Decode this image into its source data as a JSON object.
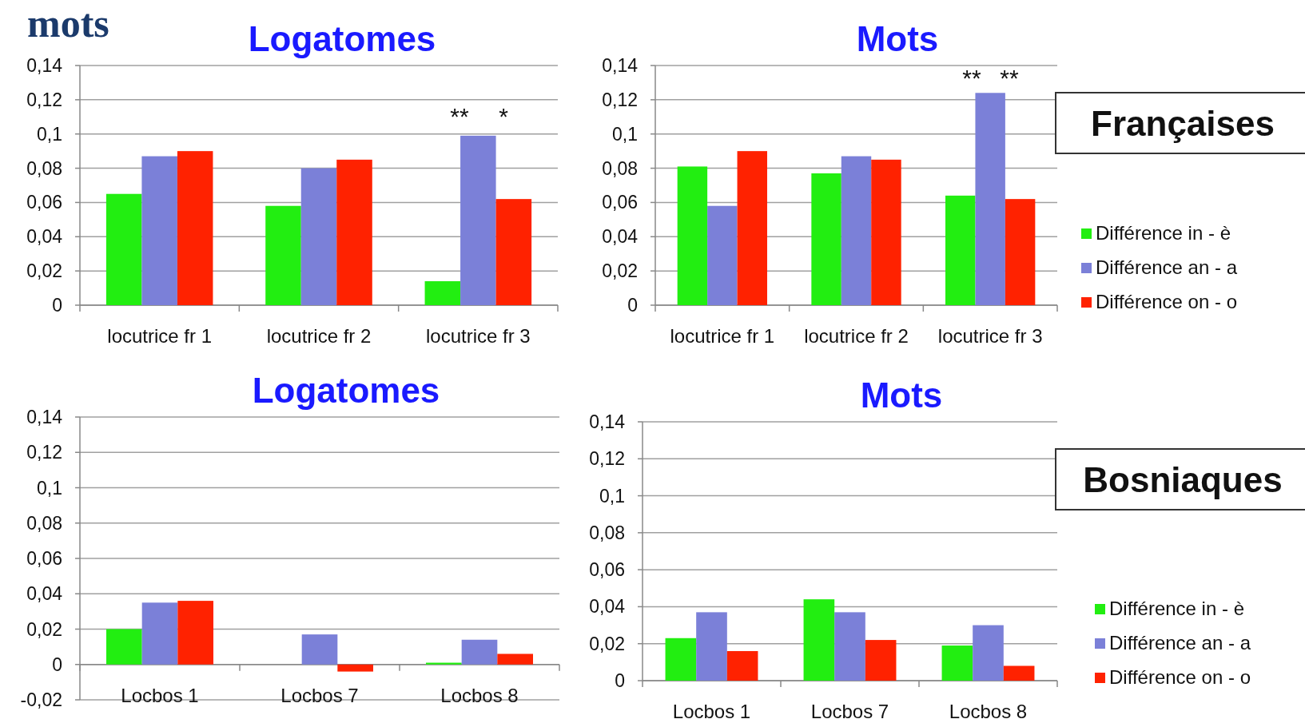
{
  "chart_data": [
    {
      "type": "bar",
      "title": "Logatomes",
      "categories": [
        "locutrice fr 1",
        "locutrice fr 2",
        "locutrice fr 3"
      ],
      "series": [
        {
          "color": "#22ee11",
          "values": [
            0.065,
            0.058,
            0.014
          ]
        },
        {
          "color": "#7b80d8",
          "values": [
            0.087,
            0.08,
            0.099
          ]
        },
        {
          "color": "#ff2200",
          "values": [
            0.09,
            0.085,
            0.062
          ]
        }
      ],
      "ylim": [
        0,
        0.14
      ],
      "yticks": [
        {
          "value": 0,
          "label": "0"
        },
        {
          "value": 0.02,
          "label": "0,02"
        },
        {
          "value": 0.04,
          "label": "0,04"
        },
        {
          "value": 0.06,
          "label": "0,06"
        },
        {
          "value": 0.08,
          "label": "0,08"
        },
        {
          "value": 0.1,
          "label": "0,1"
        },
        {
          "value": 0.12,
          "label": "0,12"
        },
        {
          "value": 0.14,
          "label": "0,14"
        }
      ],
      "grid": "y",
      "legend": false,
      "annotations": [
        "mots",
        "**",
        "*"
      ]
    },
    {
      "type": "bar",
      "title": "Mots",
      "categories": [
        "locutrice fr 1",
        "locutrice fr 2",
        "locutrice fr 3"
      ],
      "series": [
        {
          "name": "Différence in - è",
          "color": "#22ee11",
          "values": [
            0.081,
            0.077,
            0.064
          ]
        },
        {
          "name": "Différence an - a",
          "color": "#7b80d8",
          "values": [
            0.058,
            0.087,
            0.124
          ]
        },
        {
          "name": "Différence on - o",
          "color": "#ff2200",
          "values": [
            0.09,
            0.085,
            0.062
          ]
        }
      ],
      "ylim": [
        0,
        0.14
      ],
      "yticks": [
        {
          "value": 0,
          "label": "0"
        },
        {
          "value": 0.02,
          "label": "0,02"
        },
        {
          "value": 0.04,
          "label": "0,04"
        },
        {
          "value": 0.06,
          "label": "0,06"
        },
        {
          "value": 0.08,
          "label": "0,08"
        },
        {
          "value": 0.1,
          "label": "0,1"
        },
        {
          "value": 0.12,
          "label": "0,12"
        },
        {
          "value": 0.14,
          "label": "0,14"
        }
      ],
      "grid": "y",
      "legend": "right",
      "annotations": [
        "Françaises",
        "**",
        "**"
      ]
    },
    {
      "type": "bar",
      "title": "Logatomes",
      "categories": [
        "Locbos 1",
        "Locbos 7",
        "Locbos 8"
      ],
      "series": [
        {
          "color": "#22ee11",
          "values": [
            0.02,
            0,
            0.001
          ]
        },
        {
          "color": "#7b80d8",
          "values": [
            0.035,
            0.017,
            0.014
          ]
        },
        {
          "color": "#ff2200",
          "values": [
            0.036,
            -0.004,
            0.006
          ]
        }
      ],
      "ylim": [
        -0.02,
        0.14
      ],
      "yticks": [
        {
          "value": -0.02,
          "label": "-0,02"
        },
        {
          "value": 0,
          "label": "0"
        },
        {
          "value": 0.02,
          "label": "0,02"
        },
        {
          "value": 0.04,
          "label": "0,04"
        },
        {
          "value": 0.06,
          "label": "0,06"
        },
        {
          "value": 0.08,
          "label": "0,08"
        },
        {
          "value": 0.1,
          "label": "0,1"
        },
        {
          "value": 0.12,
          "label": "0,12"
        },
        {
          "value": 0.14,
          "label": "0,14"
        }
      ],
      "grid": "y",
      "legend": false
    },
    {
      "type": "bar",
      "title": "Mots",
      "categories": [
        "Locbos 1",
        "Locbos 7",
        "Locbos 8"
      ],
      "series": [
        {
          "name": "Différence in - è",
          "color": "#22ee11",
          "values": [
            0.023,
            0.044,
            0.019
          ]
        },
        {
          "name": "Différence an - a",
          "color": "#7b80d8",
          "values": [
            0.037,
            0.037,
            0.03
          ]
        },
        {
          "name": "Différence on - o",
          "color": "#ff2200",
          "values": [
            0.016,
            0.022,
            0.008
          ]
        }
      ],
      "ylim": [
        0,
        0.14
      ],
      "yticks": [
        {
          "value": 0,
          "label": "0"
        },
        {
          "value": 0.02,
          "label": "0,02"
        },
        {
          "value": 0.04,
          "label": "0,04"
        },
        {
          "value": 0.06,
          "label": "0,06"
        },
        {
          "value": 0.08,
          "label": "0,08"
        },
        {
          "value": 0.1,
          "label": "0,1"
        },
        {
          "value": 0.12,
          "label": "0,12"
        },
        {
          "value": 0.14,
          "label": "0,14"
        }
      ],
      "grid": "y",
      "legend": "right",
      "annotations": [
        "Bosniaques"
      ]
    }
  ]
}
